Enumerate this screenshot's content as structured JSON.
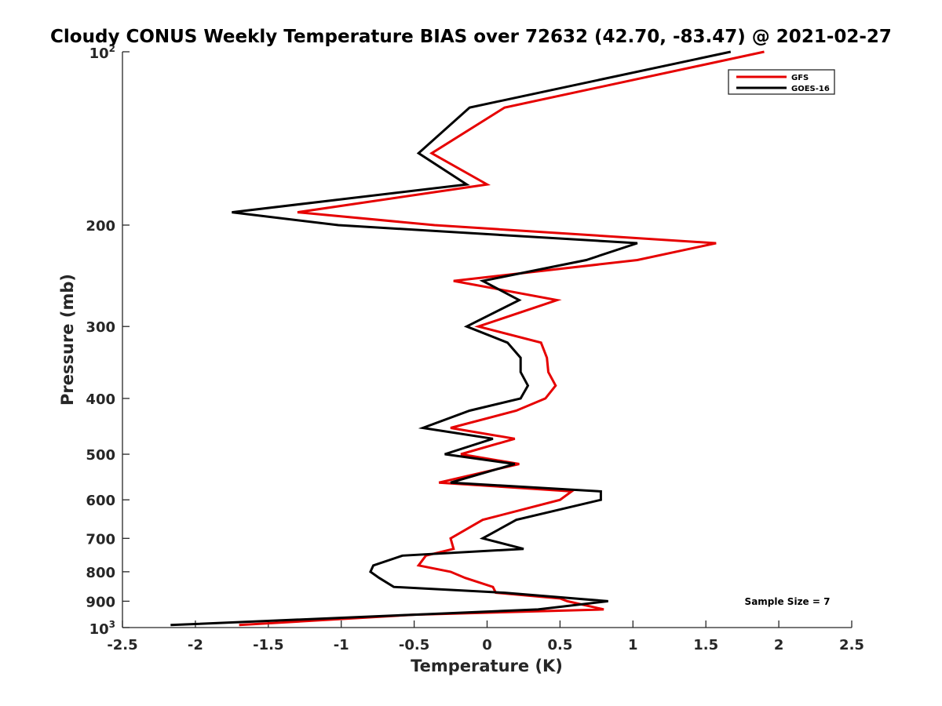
{
  "chart_data": {
    "type": "line",
    "title": "Cloudy CONUS Weekly Temperature BIAS over 72632 (42.70, -83.47) @ 2021-02-27",
    "xlabel": "Temperature (K)",
    "ylabel": "Pressure (mb)",
    "xlim": [
      -2.5,
      2.5
    ],
    "ylim": [
      100,
      1000
    ],
    "yscale": "log",
    "y_reversed": true,
    "grid": false,
    "legend_position": "top-right",
    "x_ticks": [
      "-2.5",
      "-2",
      "-1.5",
      "-1",
      "-0.5",
      "0",
      "0.5",
      "1",
      "1.5",
      "2",
      "2.5"
    ],
    "x_tick_values": [
      -2.5,
      -2,
      -1.5,
      -1,
      -0.5,
      0,
      0.5,
      1,
      1.5,
      2,
      2.5
    ],
    "y_ticks": [
      "200",
      "300",
      "400",
      "500",
      "600",
      "700",
      "800",
      "900"
    ],
    "y_tick_values": [
      200,
      300,
      400,
      500,
      600,
      700,
      800,
      900
    ],
    "y_tick_min": {
      "base": "10",
      "exp": "2",
      "value": 100
    },
    "y_tick_max": {
      "base": "10",
      "exp": "3",
      "value": 1000
    },
    "annotation": "Sample Size = 7",
    "series": [
      {
        "name": "GFS",
        "color": "#e60000",
        "points": [
          [
            1.9,
            100
          ],
          [
            0.12,
            125
          ],
          [
            -0.38,
            150
          ],
          [
            0.0,
            170
          ],
          [
            -1.3,
            190
          ],
          [
            -0.36,
            200
          ],
          [
            1.57,
            215
          ],
          [
            1.03,
            230
          ],
          [
            -0.23,
            250
          ],
          [
            0.48,
            270
          ],
          [
            -0.06,
            300
          ],
          [
            0.37,
            320
          ],
          [
            0.41,
            340
          ],
          [
            0.42,
            360
          ],
          [
            0.47,
            380
          ],
          [
            0.4,
            400
          ],
          [
            0.2,
            420
          ],
          [
            -0.25,
            450
          ],
          [
            0.19,
            470
          ],
          [
            -0.18,
            500
          ],
          [
            0.22,
            520
          ],
          [
            -0.33,
            560
          ],
          [
            0.58,
            580
          ],
          [
            0.5,
            600
          ],
          [
            -0.03,
            650
          ],
          [
            -0.25,
            700
          ],
          [
            -0.23,
            730
          ],
          [
            -0.42,
            750
          ],
          [
            -0.47,
            780
          ],
          [
            -0.25,
            800
          ],
          [
            -0.15,
            820
          ],
          [
            0.04,
            850
          ],
          [
            0.06,
            870
          ],
          [
            0.5,
            890
          ],
          [
            0.55,
            900
          ],
          [
            0.8,
            930
          ],
          [
            -0.5,
            950
          ],
          [
            -1.7,
            990
          ]
        ]
      },
      {
        "name": "GOES-16",
        "color": "#000000",
        "points": [
          [
            1.67,
            100
          ],
          [
            -0.12,
            125
          ],
          [
            -0.47,
            150
          ],
          [
            -0.14,
            170
          ],
          [
            -1.75,
            190
          ],
          [
            -1.02,
            200
          ],
          [
            1.03,
            215
          ],
          [
            0.68,
            230
          ],
          [
            -0.03,
            250
          ],
          [
            0.22,
            270
          ],
          [
            -0.14,
            300
          ],
          [
            0.14,
            320
          ],
          [
            0.23,
            340
          ],
          [
            0.23,
            360
          ],
          [
            0.28,
            380
          ],
          [
            0.23,
            400
          ],
          [
            -0.12,
            420
          ],
          [
            -0.44,
            450
          ],
          [
            0.04,
            470
          ],
          [
            -0.29,
            500
          ],
          [
            0.19,
            520
          ],
          [
            -0.25,
            560
          ],
          [
            0.78,
            580
          ],
          [
            0.78,
            600
          ],
          [
            0.2,
            650
          ],
          [
            -0.03,
            700
          ],
          [
            0.25,
            730
          ],
          [
            -0.58,
            750
          ],
          [
            -0.78,
            780
          ],
          [
            -0.8,
            800
          ],
          [
            -0.74,
            820
          ],
          [
            -0.64,
            850
          ],
          [
            0.12,
            870
          ],
          [
            0.83,
            900
          ],
          [
            0.35,
            930
          ],
          [
            -0.5,
            950
          ],
          [
            -2.17,
            990
          ]
        ]
      }
    ]
  }
}
